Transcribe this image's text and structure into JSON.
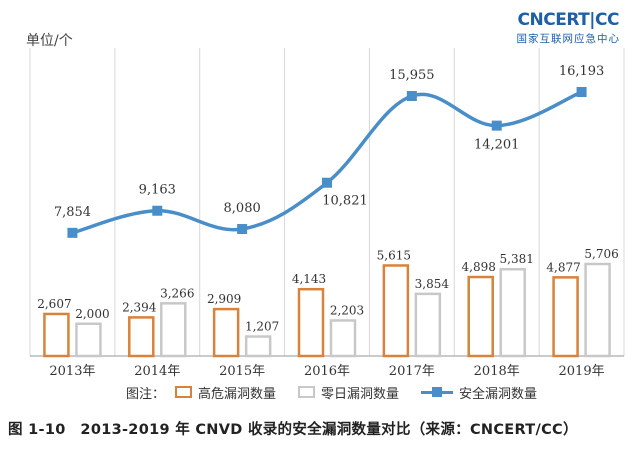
{
  "header": {
    "unit_label": "单位/个",
    "logo_text": "CNCERT|CC",
    "logo_subtext": "国家互联网应急中心"
  },
  "legend": {
    "title": "图注：",
    "items": [
      "高危漏洞数量",
      "零日漏洞数量",
      "安全漏洞数量"
    ]
  },
  "caption": "图 1-10　2013-2019 年 CNVD 收录的安全漏洞数量对比（来源：CNCERT/CC）",
  "colors": {
    "high_risk": "#d9823b",
    "zero_day": "#c8c8c8",
    "total": "#4a8ec9",
    "grid": "#d8d8d8"
  },
  "chart_data": {
    "type": "bar",
    "categories": [
      "2013年",
      "2014年",
      "2015年",
      "2016年",
      "2017年",
      "2018年",
      "2019年"
    ],
    "series": [
      {
        "name": "高危漏洞数量",
        "type": "bar",
        "values": [
          2607,
          2394,
          2909,
          4143,
          5615,
          4898,
          4877
        ],
        "labels": [
          "2,607",
          "2,394",
          "2,909",
          "4,143",
          "5,615",
          "4,898",
          "4,877"
        ]
      },
      {
        "name": "零日漏洞数量",
        "type": "bar",
        "values": [
          2000,
          3266,
          1207,
          2203,
          3854,
          5381,
          5706
        ],
        "labels": [
          "2,000",
          "3,266",
          "1,207",
          "2,203",
          "3,854",
          "5,381",
          "5,706"
        ]
      },
      {
        "name": "安全漏洞数量",
        "type": "line",
        "values": [
          7854,
          9163,
          8080,
          10821,
          15955,
          14201,
          16193
        ],
        "labels": [
          "7,854",
          "9,163",
          "8,080",
          "10,821",
          "15,955",
          "14,201",
          "16,193"
        ]
      }
    ],
    "title": "",
    "xlabel": "",
    "ylabel": "单位/个",
    "grid": "vertical",
    "legend_position": "bottom"
  }
}
